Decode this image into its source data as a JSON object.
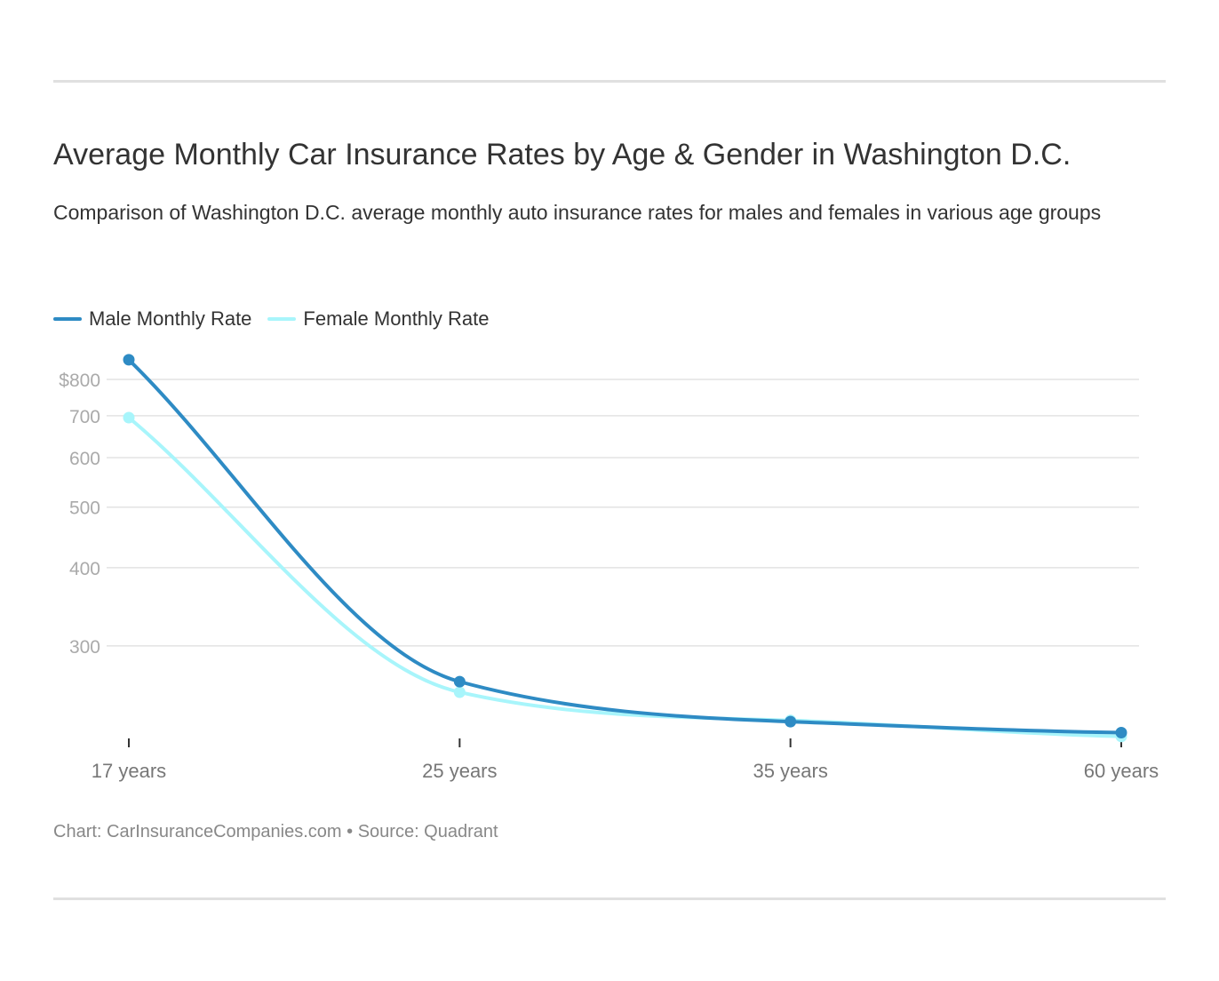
{
  "title": "Average Monthly Car Insurance Rates by Age & Gender in Washington D.C.",
  "subtitle": "Comparison of Washington D.C. average monthly auto insurance rates for males and females in various age groups",
  "footer": "Chart: CarInsuranceCompanies.com • Source: Quadrant",
  "chart_data": {
    "type": "line",
    "title": "Average Monthly Car Insurance Rates by Age & Gender in Washington D.C.",
    "categories": [
      "17 years",
      "25 years",
      "35 years",
      "60 years"
    ],
    "y_scale": "log",
    "ylim": [
      200,
      870
    ],
    "y_ticks": [
      300,
      400,
      500,
      600,
      700,
      800
    ],
    "y_tick_labels": [
      "300",
      "400",
      "500",
      "600",
      "700",
      "$800"
    ],
    "grid": true,
    "legend_position": "top-left",
    "series": [
      {
        "name": "Male Monthly Rate",
        "color": "#2e8bc4",
        "values": [
          860,
          263,
          227,
          218
        ]
      },
      {
        "name": "Female Monthly Rate",
        "color": "#a8f5fb",
        "values": [
          695,
          253,
          228,
          215
        ]
      }
    ]
  }
}
